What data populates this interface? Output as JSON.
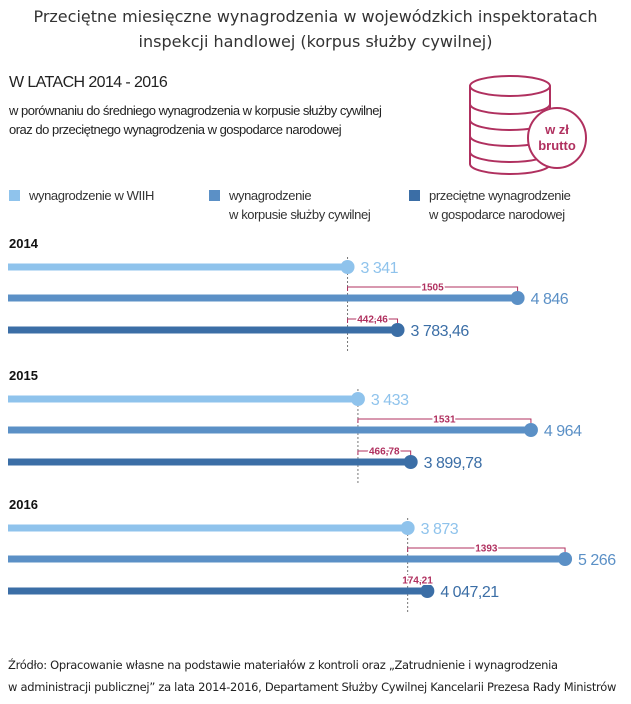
{
  "title_line1": "Przeciętne miesięczne wynagrodzenia w wojewódzkich inspektoratach",
  "title_line2": "inspekcji handlowej (korpus służby cywilnej)",
  "subtitle": "W LATACH 2014 - 2016",
  "description_line1": "w porównaniu do średniego wynagrodzenia w korpusie służby cywilnej",
  "description_line2": "oraz do przeciętnego wynagrodzenia w gospodarce narodowej",
  "badge": {
    "line1": "w zł",
    "line2": "brutto",
    "icon": "coin-stack-icon"
  },
  "source_line1": "Źródło: Opracowanie własne na podstawie materiałów z kontroli oraz „Zatrudnienie i wynagrodzenia",
  "source_line2": "w administracji publicznej” za lata 2014-2016, Departament Służby Cywilnej Kancelarii Prezesa Rady Ministrów",
  "chart_data": {
    "type": "bar",
    "orientation": "horizontal",
    "legend_position": "top",
    "series": [
      {
        "name": "wynagrodzenie w WIIH",
        "name_line2": "",
        "color": "#8fc3ec"
      },
      {
        "name": "wynagrodzenie",
        "name_line2": "w korpusie służby cywilnej",
        "color": "#5b90c6"
      },
      {
        "name": "przeciętne wynagrodzenie",
        "name_line2": "w gospodarce narodowej",
        "color": "#3b6ea6"
      }
    ],
    "annotation_color": "#b0305f",
    "groups": [
      {
        "year": "2014",
        "values": [
          3341,
          4846,
          3783.46
        ],
        "labels": [
          "3 341",
          "4 846",
          "3 783,46"
        ],
        "differences": [
          "1505",
          "442,46"
        ]
      },
      {
        "year": "2015",
        "values": [
          3433,
          4964,
          3899.78
        ],
        "labels": [
          "3 433",
          "4 964",
          "3 899,78"
        ],
        "differences": [
          "1531",
          "466,78"
        ]
      },
      {
        "year": "2016",
        "values": [
          3873,
          5266,
          4047.21
        ],
        "labels": [
          "3 873",
          "5 266",
          "4 047,21"
        ],
        "differences": [
          "1393",
          "174,21"
        ]
      }
    ]
  }
}
